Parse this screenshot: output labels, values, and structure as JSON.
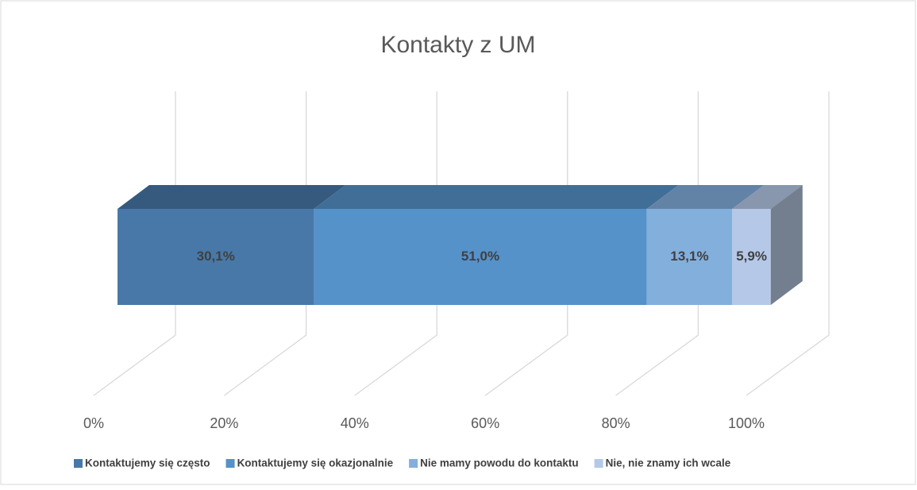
{
  "chart_data": {
    "type": "stacked-bar-3d",
    "title": "Kontakty z UM",
    "categories": [
      null
    ],
    "series": [
      {
        "name": "Kontaktujemy się często",
        "color": "#4878a8",
        "values": [
          30.1
        ],
        "value_labels": [
          "30,1%"
        ]
      },
      {
        "name": "Kontaktujemy się okazjonalnie",
        "color": "#5592c9",
        "values": [
          51.0
        ],
        "value_labels": [
          "51,0%"
        ]
      },
      {
        "name": "Nie mamy powodu do kontaktu",
        "color": "#83afdd",
        "values": [
          13.1
        ],
        "value_labels": [
          "13,1%"
        ]
      },
      {
        "name": "Nie, nie znamy ich wcale",
        "color": "#b5c8e8",
        "values": [
          5.9
        ],
        "value_labels": [
          "5,9%"
        ]
      }
    ],
    "xlim": [
      0,
      100
    ],
    "xticks": [
      {
        "value": 0,
        "label": "0%"
      },
      {
        "value": 20,
        "label": "20%"
      },
      {
        "value": 40,
        "label": "40%"
      },
      {
        "value": 60,
        "label": "60%"
      },
      {
        "value": 80,
        "label": "80%"
      },
      {
        "value": 100,
        "label": "100%"
      }
    ],
    "grid": true,
    "legend": "bottom"
  }
}
